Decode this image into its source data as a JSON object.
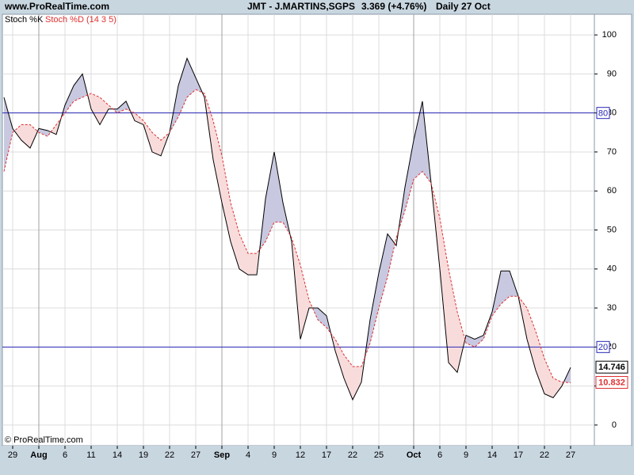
{
  "site": "www.ProRealTime.com",
  "header": {
    "title": "JMT - J.MARTINS,SGPS",
    "price": "3.369 (+4.76%)",
    "period": "Daily  27 Oct"
  },
  "footer": "© ProRealTime.com",
  "chart_data": {
    "type": "line",
    "categories": [
      null,
      "29",
      null,
      null,
      "Aug",
      null,
      null,
      "6",
      null,
      null,
      "11",
      null,
      null,
      "14",
      null,
      null,
      "19",
      null,
      null,
      "22",
      null,
      null,
      "27",
      null,
      null,
      "Sep",
      null,
      null,
      "4",
      null,
      null,
      "9",
      null,
      null,
      "12",
      null,
      null,
      "17",
      null,
      null,
      "22",
      null,
      null,
      "25",
      null,
      null,
      null,
      "Oct",
      null,
      null,
      "6",
      null,
      null,
      "9",
      null,
      null,
      "14",
      null,
      null,
      "17",
      null,
      null,
      "22",
      null,
      null,
      "27"
    ],
    "series": [
      {
        "name": "Stoch %K",
        "color": "#000000",
        "dashed": false,
        "values": [
          84,
          76,
          73,
          71,
          76,
          75.5,
          74.5,
          82,
          87,
          90,
          81,
          77,
          81,
          81,
          83,
          78,
          77,
          70,
          69,
          75,
          87,
          94,
          89,
          84,
          68,
          57,
          47,
          40,
          38.5,
          38.5,
          58,
          70,
          57,
          47,
          22,
          30,
          30,
          28,
          19,
          12,
          6.5,
          11,
          27,
          39,
          49,
          46,
          61,
          73,
          83,
          62,
          40,
          16,
          13.5,
          23,
          22,
          23,
          29,
          39.5,
          39.5,
          33,
          22,
          14,
          8,
          7,
          10,
          14.746
        ]
      },
      {
        "name": "Stoch %D (14 3 5)",
        "color": "#e03030",
        "dashed": true,
        "values": [
          65,
          75,
          77,
          77,
          75,
          74,
          77,
          80,
          83,
          84,
          85,
          84,
          82,
          80,
          81,
          80,
          78,
          75,
          73,
          75,
          79,
          84,
          86,
          85,
          78,
          69,
          57,
          49,
          44,
          44,
          47,
          52,
          52,
          48,
          41,
          32,
          27,
          25,
          22,
          18,
          15,
          15,
          21,
          30,
          38,
          48,
          55,
          63,
          65,
          62,
          53,
          40,
          29,
          21,
          20,
          22,
          28,
          31,
          33,
          33,
          30,
          24,
          17,
          12,
          11,
          10.832
        ]
      }
    ],
    "fill_above": "#c8c8e0",
    "fill_below": "#f8dcdc",
    "hlines": [
      80,
      20
    ],
    "hline_color": "#2828b8",
    "ylim": [
      -5.3,
      105.3
    ],
    "yticks": [
      0,
      10,
      20,
      30,
      40,
      50,
      60,
      70,
      80,
      90,
      100
    ],
    "grid": true
  }
}
